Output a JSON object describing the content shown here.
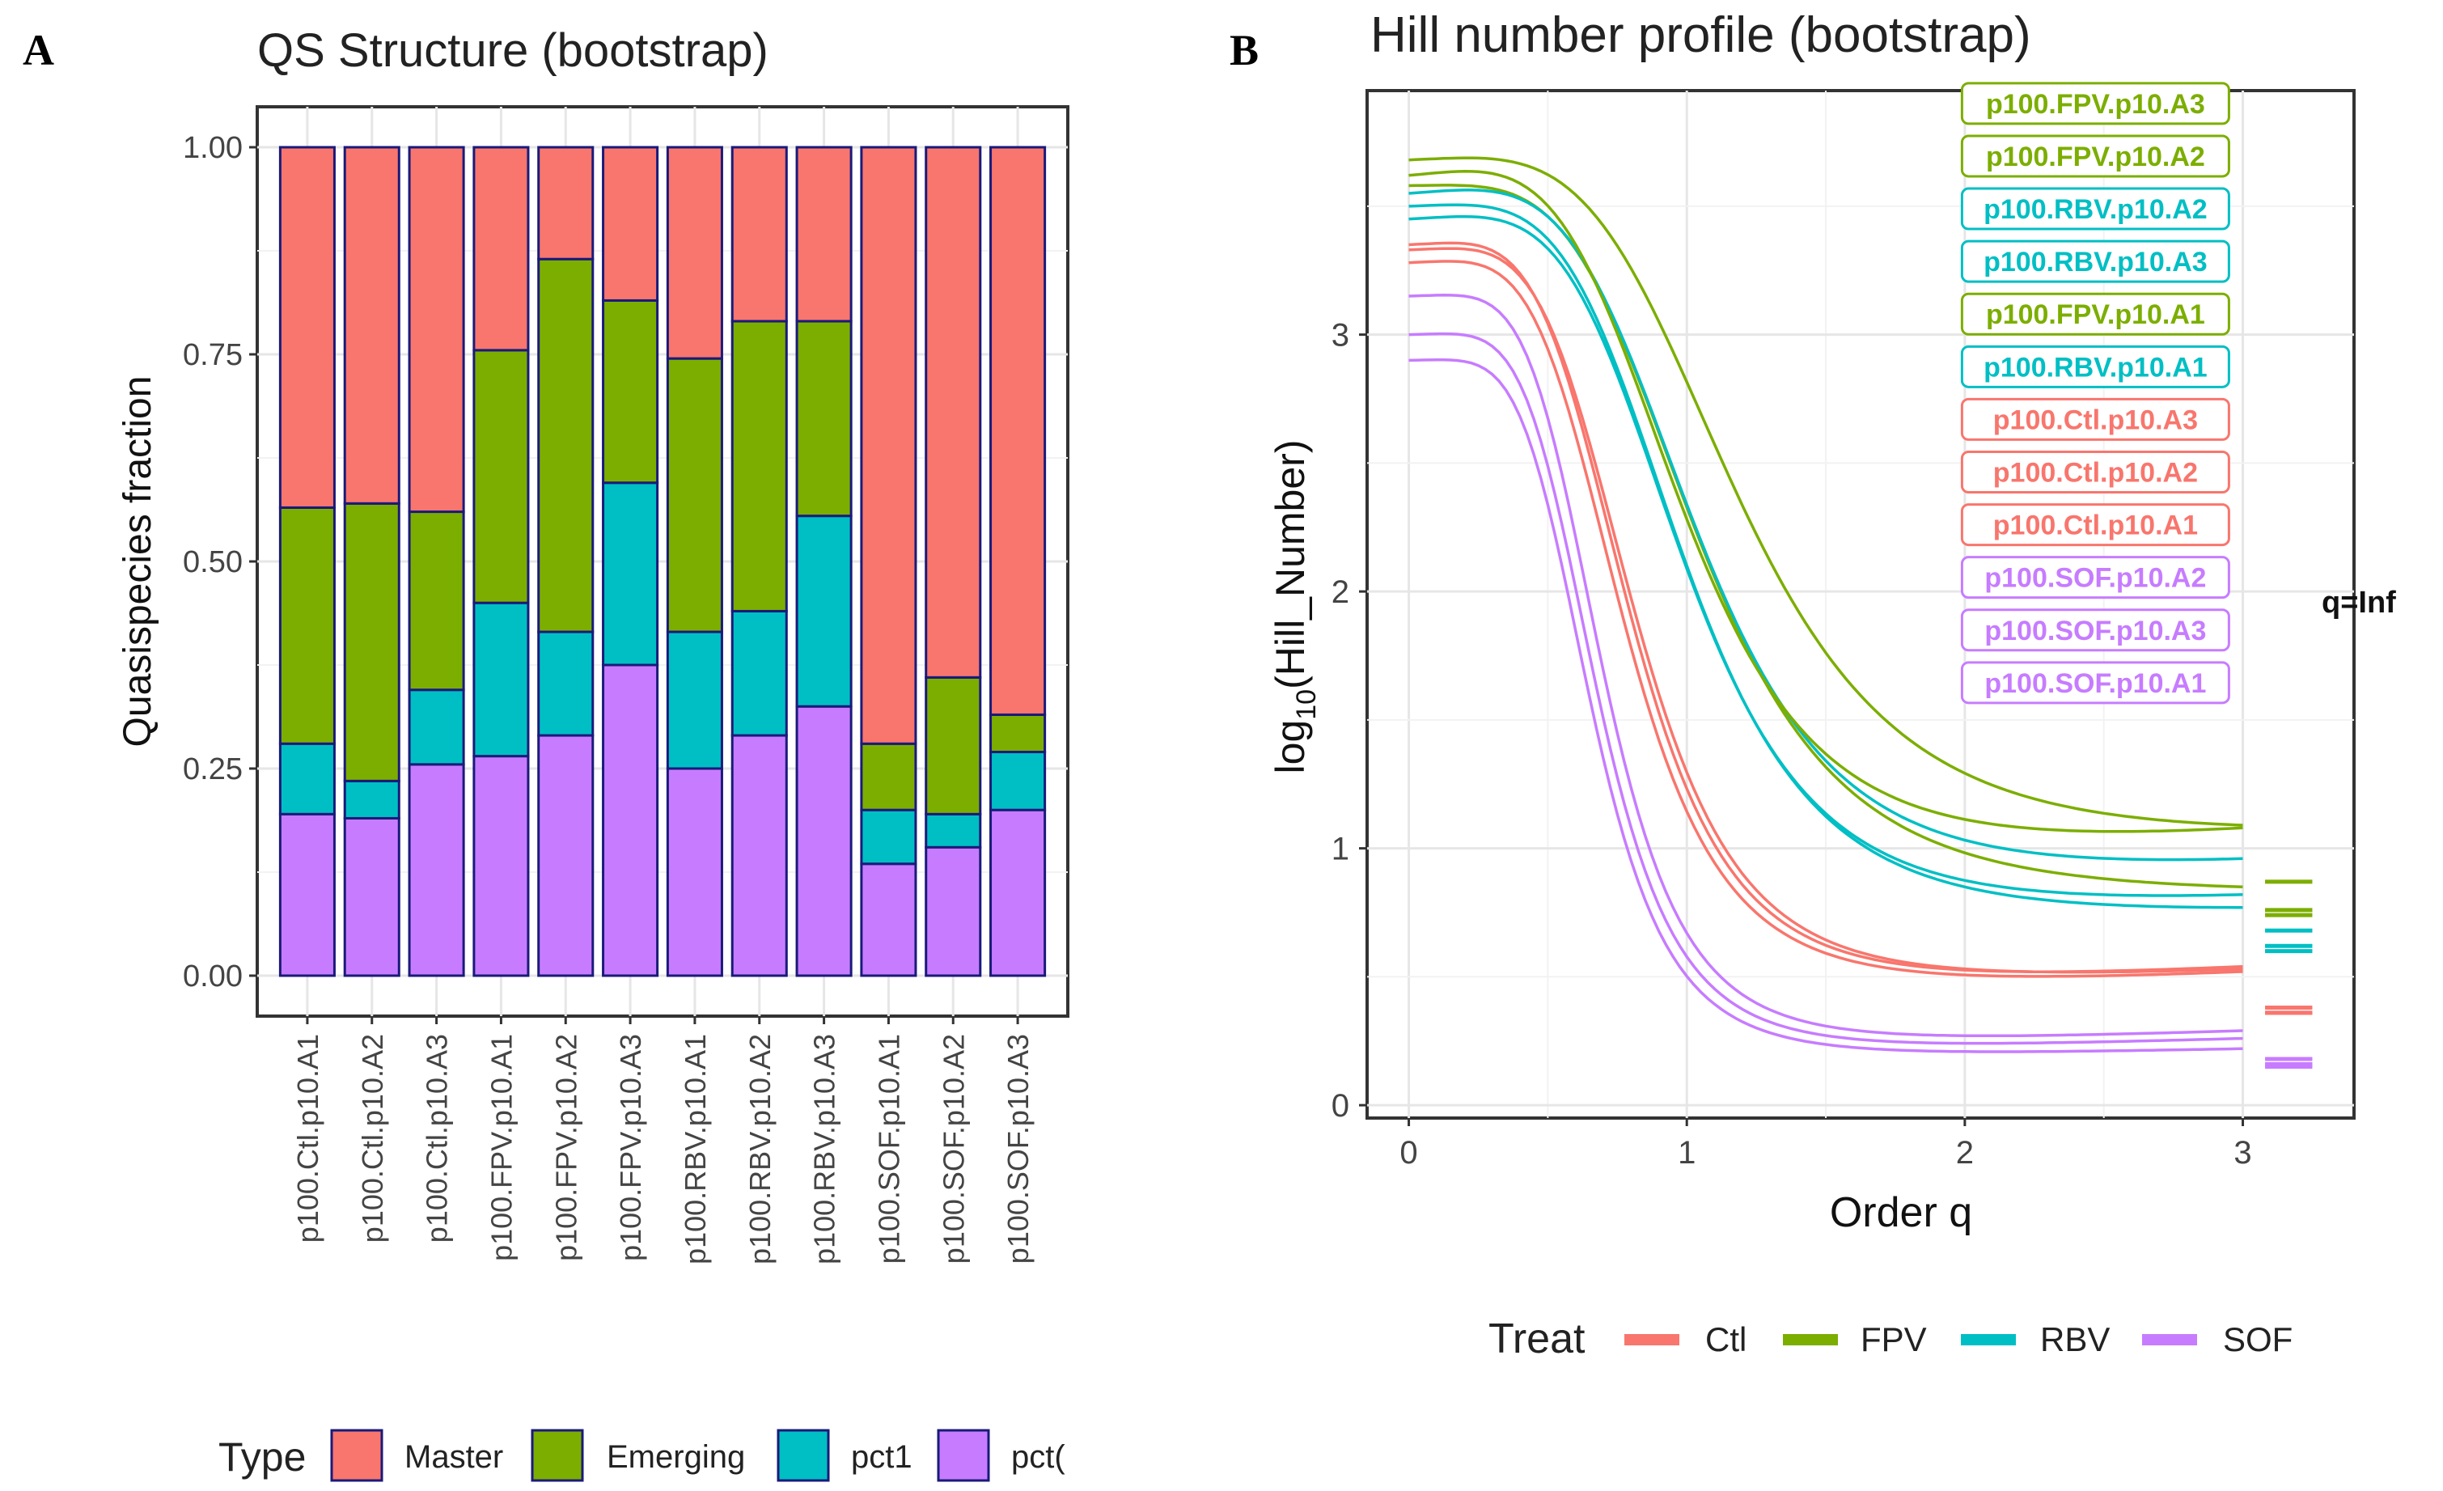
{
  "chart_data": [
    {
      "panel_label": "A",
      "type": "bar",
      "stacked": true,
      "title": "QS Structure (bootstrap)",
      "xlabel": "",
      "ylabel": "Quasispecies fraction",
      "ylim": [
        0,
        1.0
      ],
      "y_ticks": [
        "0.00",
        "0.25",
        "0.50",
        "0.75",
        "1.00"
      ],
      "grid": true,
      "categories": [
        "p100.Ctl.p10.A1",
        "p100.Ctl.p10.A2",
        "p100.Ctl.p10.A3",
        "p100.FPV.p10.A1",
        "p100.FPV.p10.A2",
        "p100.FPV.p10.A3",
        "p100.RBV.p10.A1",
        "p100.RBV.p10.A2",
        "p100.RBV.p10.A3",
        "p100.SOF.p10.A1",
        "p100.SOF.p10.A2",
        "p100.SOF.p10.A3"
      ],
      "series": [
        {
          "name": "pct(",
          "color": "#C77CFF",
          "values": [
            0.195,
            0.19,
            0.255,
            0.265,
            0.29,
            0.375,
            0.25,
            0.29,
            0.325,
            0.135,
            0.155,
            0.2
          ]
        },
        {
          "name": "pct1",
          "color": "#00BFC4",
          "values": [
            0.085,
            0.045,
            0.09,
            0.185,
            0.125,
            0.22,
            0.165,
            0.15,
            0.23,
            0.065,
            0.04,
            0.07
          ]
        },
        {
          "name": "Emerging",
          "color": "#7CAE00",
          "values": [
            0.285,
            0.335,
            0.215,
            0.305,
            0.45,
            0.22,
            0.33,
            0.35,
            0.235,
            0.08,
            0.165,
            0.045
          ]
        },
        {
          "name": "Master",
          "color": "#F8766D",
          "values": [
            0.435,
            0.43,
            0.44,
            0.245,
            0.135,
            0.185,
            0.255,
            0.21,
            0.21,
            0.72,
            0.64,
            0.685
          ]
        }
      ],
      "legend": {
        "title": "Type",
        "position": "bottom",
        "entries": [
          "Master",
          "Emerging",
          "pct1",
          "pct("
        ]
      }
    },
    {
      "panel_label": "B",
      "type": "line",
      "title": "Hill number profile (bootstrap)",
      "xlabel": "Order q",
      "ylabel_main": "log",
      "ylabel_sub": "10",
      "ylabel_rest": "(Hill_Number)",
      "xlim": [
        -0.15,
        3.4
      ],
      "ylim": [
        -0.05,
        3.95
      ],
      "x_ticks": [
        0,
        1,
        2,
        3
      ],
      "y_ticks": [
        0,
        1,
        2,
        3
      ],
      "grid": true,
      "q_inf_label": "q=Inf",
      "colors": {
        "Ctl": "#F8766D",
        "FPV": "#7CAE00",
        "RBV": "#00BFC4",
        "SOF": "#C77CFF"
      },
      "series": [
        {
          "name": "p100.FPV.p10.A3",
          "treat": "FPV",
          "y0": 3.68,
          "yinf": 0.87,
          "k": 2.0,
          "q50": 1.2,
          "end": 1.09
        },
        {
          "name": "p100.FPV.p10.A2",
          "treat": "FPV",
          "y0": 3.58,
          "yinf": 0.76,
          "k": 2.05,
          "q50": 1.05,
          "end": 0.85
        },
        {
          "name": "p100.RBV.p10.A2",
          "treat": "RBV",
          "y0": 3.55,
          "yinf": 0.68,
          "k": 2.05,
          "q50": 1.05,
          "end": 0.96
        },
        {
          "name": "p100.RBV.p10.A3",
          "treat": "RBV",
          "y0": 3.5,
          "yinf": 0.62,
          "k": 2.1,
          "q50": 1.0,
          "end": 0.77
        },
        {
          "name": "p100.FPV.p10.A1",
          "treat": "FPV",
          "y0": 3.62,
          "yinf": 0.74,
          "k": 2.0,
          "q50": 1.0,
          "end": 1.08
        },
        {
          "name": "p100.RBV.p10.A1",
          "treat": "RBV",
          "y0": 3.45,
          "yinf": 0.6,
          "k": 2.1,
          "q50": 1.0,
          "end": 0.82
        },
        {
          "name": "p100.Ctl.p10.A3",
          "treat": "Ctl",
          "y0": 3.33,
          "yinf": 0.38,
          "k": 2.2,
          "q50": 0.82,
          "end": 0.53
        },
        {
          "name": "p100.Ctl.p10.A2",
          "treat": "Ctl",
          "y0": 3.35,
          "yinf": 0.36,
          "k": 2.2,
          "q50": 0.8,
          "end": 0.54
        },
        {
          "name": "p100.Ctl.p10.A1",
          "treat": "Ctl",
          "y0": 3.28,
          "yinf": 0.36,
          "k": 2.2,
          "q50": 0.78,
          "end": 0.52
        },
        {
          "name": "p100.SOF.p10.A2",
          "treat": "SOF",
          "y0": 3.15,
          "yinf": 0.18,
          "k": 2.4,
          "q50": 0.7,
          "end": 0.29
        },
        {
          "name": "p100.SOF.p10.A3",
          "treat": "SOF",
          "y0": 3.0,
          "yinf": 0.16,
          "k": 2.4,
          "q50": 0.68,
          "end": 0.26
        },
        {
          "name": "p100.SOF.p10.A1",
          "treat": "SOF",
          "y0": 2.9,
          "yinf": 0.15,
          "k": 2.4,
          "q50": 0.66,
          "end": 0.22
        }
      ],
      "legend": {
        "title": "Treat",
        "position": "bottom",
        "entries": [
          "Ctl",
          "FPV",
          "RBV",
          "SOF"
        ]
      }
    }
  ]
}
